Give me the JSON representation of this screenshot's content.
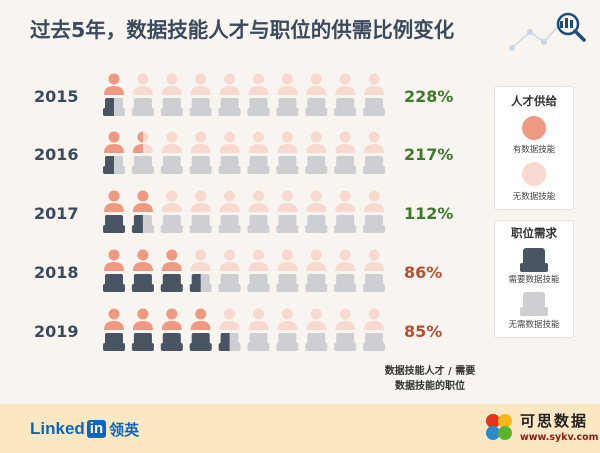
{
  "title": "过去5年，数据技能人才与职位的供需比例变化",
  "chart_data": {
    "type": "pictograph",
    "title": "过去5年，数据技能人才与职位的供需比例变化",
    "categories": [
      "2015",
      "2016",
      "2017",
      "2018",
      "2019"
    ],
    "series": [
      {
        "name": "有数据技能",
        "values": [
          1,
          1.5,
          2,
          3,
          4
        ]
      },
      {
        "name": "需要数据技能",
        "values": [
          0.5,
          0.5,
          1.5,
          3.5,
          4.5
        ]
      }
    ],
    "ratio_labels": [
      "228%",
      "217%",
      "112%",
      "86%",
      "85%"
    ],
    "ratio_values": [
      228,
      217,
      112,
      86,
      85
    ],
    "icons_per_row": 10
  },
  "ratio_note": "数据技能人才 / 需要数据技能的职位",
  "legend": {
    "supply_title": "人才供给",
    "supply_with": "有数据技能",
    "supply_without": "无数据技能",
    "demand_title": "职位需求",
    "demand_with": "需要数据技能",
    "demand_without": "无需数据技能"
  },
  "colors": {
    "person_with": "#ee9a82",
    "person_without": "#f7d9cf",
    "seat_with": "#4a5563",
    "seat_without": "#cdcfd2",
    "up": "#3e7a2a",
    "down": "#b7502c"
  },
  "footer": {
    "brand_text": "Linked",
    "brand_in": "in",
    "brand_cn": "领英"
  },
  "watermark": {
    "title": "可思数据",
    "url": "www.sykv.com"
  }
}
